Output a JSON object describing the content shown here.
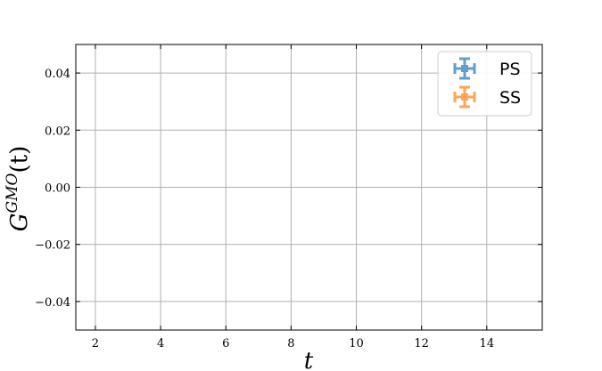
{
  "chart_data": {
    "type": "scatter",
    "title": "",
    "xlabel": "t",
    "ylabel": {
      "base": "G",
      "superscript": "GMO",
      "arg": "(t)"
    },
    "xlim": [
      1.4,
      15.7
    ],
    "ylim": [
      -0.05,
      0.05
    ],
    "xticks": [
      2,
      4,
      6,
      8,
      10,
      12,
      14
    ],
    "xtick_labels": [
      "2",
      "4",
      "6",
      "8",
      "10",
      "12",
      "14"
    ],
    "yticks": [
      0.04,
      0.02,
      0.0,
      -0.02,
      -0.04
    ],
    "ytick_labels": [
      "0.04",
      "0.02",
      "0.00",
      "−0.02",
      "−0.04"
    ],
    "grid": true,
    "legend_position": "top-right",
    "series": [
      {
        "name": "PS",
        "color": "#1f77b4",
        "marker": "errorbar",
        "x": [],
        "y": []
      },
      {
        "name": "SS",
        "color": "#ff7f0e",
        "marker": "errorbar",
        "x": [],
        "y": []
      }
    ]
  }
}
